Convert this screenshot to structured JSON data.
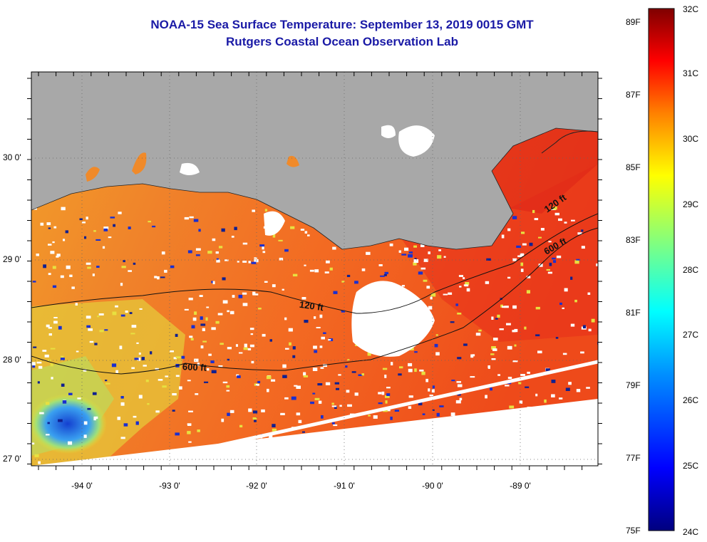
{
  "title": "NOAA-15 Sea Surface Temperature:  September 13, 2019 0015 GMT",
  "subtitle": "Rutgers Coastal Ocean Observation Lab",
  "latitude_labels": [
    "30 0'",
    "29 0'",
    "28 0'",
    "27 0'"
  ],
  "longitude_labels": [
    "-94 0'",
    "-93 0'",
    "-92 0'",
    "-91 0'",
    "-90 0'",
    "-89 0'"
  ],
  "colorbar": {
    "fahrenheit_labels": [
      "89F",
      "87F",
      "85F",
      "83F",
      "81F",
      "79F",
      "77F",
      "75F"
    ],
    "celsius_labels": [
      "32C",
      "31C",
      "30C",
      "29C",
      "28C",
      "27C",
      "26C",
      "25C",
      "24C"
    ],
    "colors": [
      "#00007f",
      "#0000ff",
      "#0080ff",
      "#00ffff",
      "#80ff80",
      "#ffff00",
      "#ff8000",
      "#ff0000",
      "#7f0000"
    ]
  },
  "contour_labels": [
    "120 ft",
    "600 ft",
    "120 ft",
    "600 ft"
  ],
  "map_colors": {
    "land": "#a8a8a8",
    "cloud": "#ffffff",
    "warm_water": "#f5641e",
    "cool_water": "#2a7be0"
  }
}
